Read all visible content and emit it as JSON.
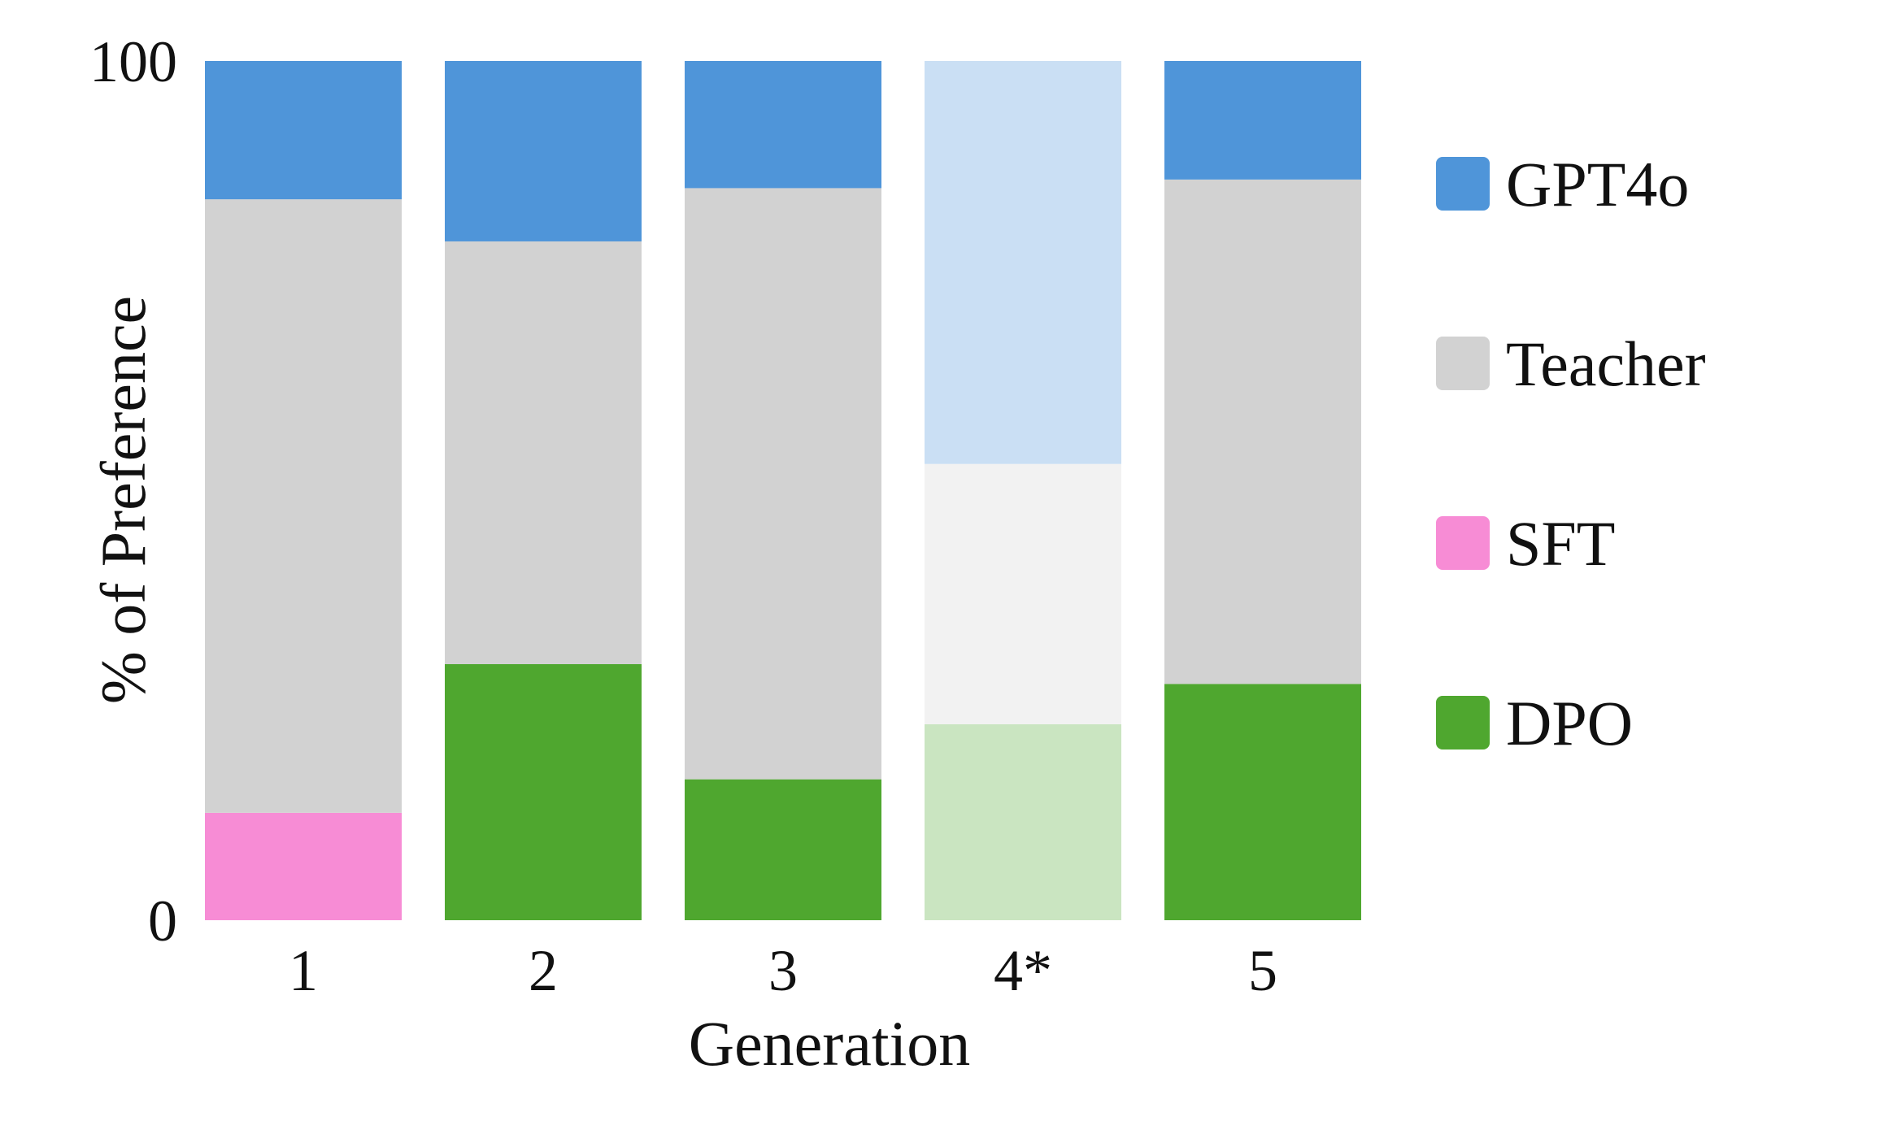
{
  "chart_data": {
    "type": "bar",
    "stacked": true,
    "categories": [
      "1",
      "2",
      "3",
      "4*",
      "5"
    ],
    "xlabel": "Generation",
    "ylabel": "% of Preference",
    "ylim": [
      0,
      100
    ],
    "yticks": [
      "0",
      "100"
    ],
    "grid": false,
    "legend_position": "right",
    "highlighted_faded_category": "4*",
    "series": [
      {
        "name": "SFT",
        "color": "#f78cd5",
        "values": [
          12.5,
          0,
          0,
          0,
          0
        ]
      },
      {
        "name": "DPO",
        "color": "#4fa72f",
        "values": [
          0,
          29.8,
          16.4,
          22.8,
          27.5
        ]
      },
      {
        "name": "Teacher",
        "color": "#d2d2d2",
        "values": [
          71.4,
          49.2,
          68.8,
          30.3,
          58.7
        ]
      },
      {
        "name": "GPT4o",
        "color": "#4f95d9",
        "values": [
          16.1,
          21.0,
          14.8,
          46.9,
          13.8
        ]
      }
    ],
    "legend_order": [
      "GPT4o",
      "Teacher",
      "SFT",
      "DPO"
    ]
  }
}
